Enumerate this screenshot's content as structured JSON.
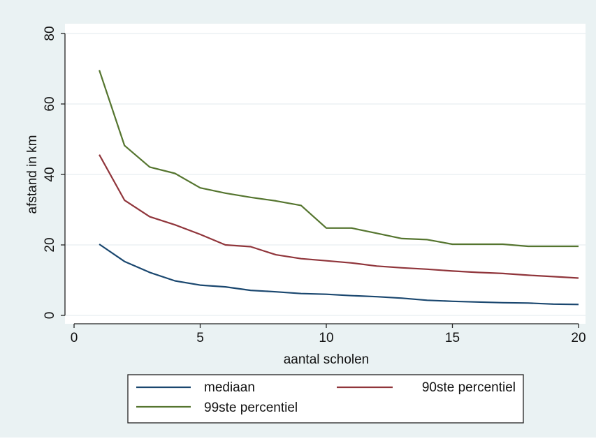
{
  "colors": {
    "outer_background": "#eaf2f3",
    "plot_background": "#ffffff",
    "grid": "#e8eef0",
    "axis": "#222222",
    "mediaan": "#1a476f",
    "p90": "#90353b",
    "p99": "#55752f"
  },
  "chart_data": {
    "type": "line",
    "title": "",
    "xlabel": "aantal scholen",
    "ylabel": "afstand in km",
    "xlim": [
      0,
      20
    ],
    "ylim": [
      0,
      80
    ],
    "xticks": [
      0,
      5,
      10,
      15,
      20
    ],
    "yticks": [
      0,
      20,
      40,
      60,
      80
    ],
    "grid": true,
    "legend_position": "bottom",
    "x": [
      1,
      2,
      3,
      4,
      5,
      6,
      7,
      8,
      9,
      10,
      11,
      12,
      13,
      14,
      15,
      16,
      17,
      18,
      19,
      20
    ],
    "series": [
      {
        "name": "mediaan",
        "color": "#1a476f",
        "values": [
          20.2,
          15.3,
          12.2,
          9.8,
          8.6,
          8.1,
          7.1,
          6.7,
          6.2,
          6.0,
          5.6,
          5.3,
          4.9,
          4.3,
          4.0,
          3.8,
          3.6,
          3.5,
          3.2,
          3.1
        ]
      },
      {
        "name": "90ste percentiel",
        "color": "#90353b",
        "values": [
          45.6,
          32.7,
          28.0,
          25.7,
          23.0,
          20.0,
          19.5,
          17.2,
          16.1,
          15.5,
          14.9,
          14.0,
          13.5,
          13.1,
          12.6,
          12.2,
          11.9,
          11.4,
          11.0,
          10.6
        ]
      },
      {
        "name": "99ste percentiel",
        "color": "#55752f",
        "values": [
          69.6,
          48.2,
          42.1,
          40.3,
          36.2,
          34.7,
          33.5,
          32.5,
          31.2,
          24.8,
          24.8,
          23.3,
          21.8,
          21.5,
          20.2,
          20.2,
          20.2,
          19.6,
          19.6,
          19.6
        ]
      }
    ]
  }
}
